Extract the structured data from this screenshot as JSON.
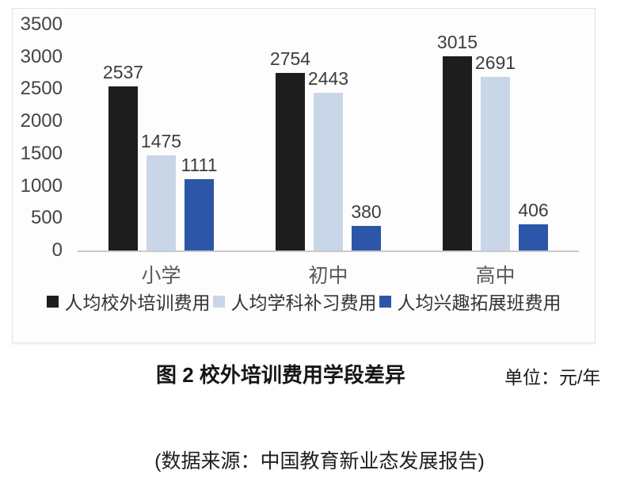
{
  "chart_data": {
    "type": "bar",
    "categories": [
      "小学",
      "初中",
      "高中"
    ],
    "series": [
      {
        "name": "人均校外培训费用",
        "color": "#1d1d1d",
        "values": [
          2537,
          2754,
          3015
        ]
      },
      {
        "name": "人均学科补习费用",
        "color": "#c9d6e8",
        "values": [
          1475,
          2443,
          2691
        ]
      },
      {
        "name": "人均兴趣拓展班费用",
        "color": "#2c56a7",
        "values": [
          1111,
          380,
          406
        ]
      }
    ],
    "title": "图 2 校外培训费用学段差异",
    "xlabel": "",
    "ylabel": "",
    "unit": "单位：元/年",
    "ylim": [
      0,
      3500
    ],
    "yticks": [
      0,
      500,
      1000,
      1500,
      2000,
      2500,
      3000,
      3500
    ],
    "grid": false,
    "legend_position": "bottom"
  },
  "caption": {
    "figure_label": "图 2 校外培训费用学段差异",
    "unit_label": "单位：元/年"
  },
  "source": "(数据来源：中国教育新业态发展报告)",
  "colors": {
    "series_black": "#1d1d1d",
    "series_lightblue": "#c9d6e8",
    "series_blue": "#2c56a7",
    "axis_line": "#c9c9c9"
  }
}
